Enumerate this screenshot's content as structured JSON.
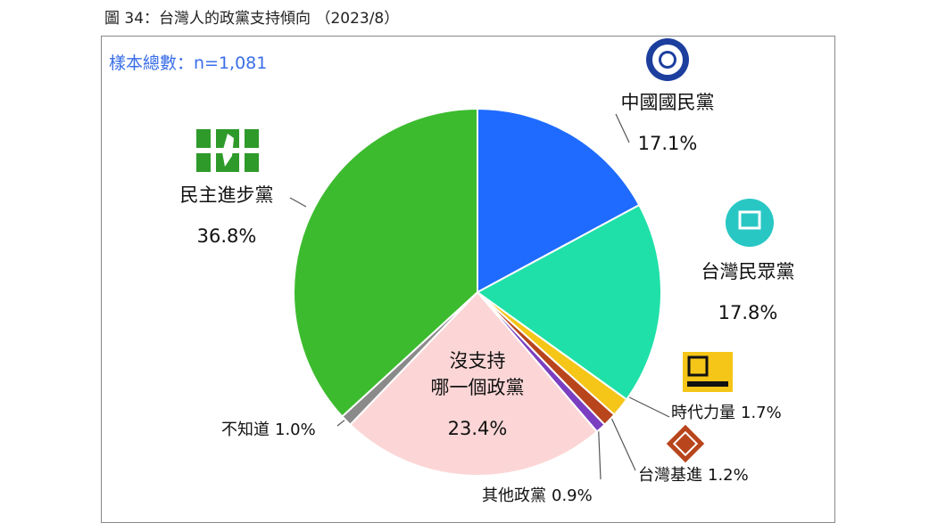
{
  "chart_data": {
    "type": "pie",
    "title": "圖 34：台灣人的政黨支持傾向 （2023/8）",
    "annotation": "樣本總數：n=1,081",
    "categories": [
      "中國國民黨",
      "台灣民眾黨",
      "時代力量",
      "台灣基進",
      "其他政黨",
      "沒支持\n哪一個政黨",
      "不知道",
      "民主進步黨"
    ],
    "values": [
      17.1,
      17.8,
      1.7,
      1.2,
      0.9,
      23.4,
      1.0,
      36.8
    ],
    "value_labels": [
      "17.1%",
      "17.8%",
      "1.7%",
      "1.2%",
      "0.9%",
      "23.4%",
      "1.0%",
      "36.8%"
    ],
    "colors": [
      "#1f6bff",
      "#1fe0a8",
      "#f5c518",
      "#b8451c",
      "#7a3fc0",
      "#fcd6d6",
      "#8a8a8a",
      "#3dbb2f"
    ]
  }
}
